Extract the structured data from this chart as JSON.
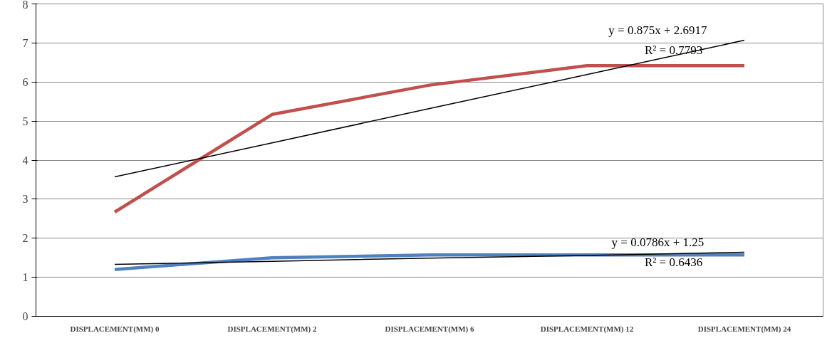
{
  "chart_data": {
    "type": "line",
    "categories": [
      "DISPLACEMENT(MM) 0",
      "DISPLACEMENT(MM) 2",
      "DISPLACEMENT(MM) 6",
      "DISPLACEMENT(MM) 12",
      "DISPLACEMENT(MM) 24"
    ],
    "series": [
      {
        "color": "#c0504d",
        "values": [
          2.67,
          5.17,
          5.92,
          6.42,
          6.42
        ]
      },
      {
        "color": "#4f81bd",
        "values": [
          1.2,
          1.5,
          1.57,
          1.57,
          1.57
        ]
      },
      {
        "color": "#000000",
        "values": [
          3.57,
          4.44,
          5.32,
          6.19,
          7.07
        ]
      },
      {
        "color": "#000000",
        "values": [
          1.33,
          1.41,
          1.49,
          1.56,
          1.64
        ]
      }
    ],
    "ylim": [
      0,
      8
    ],
    "yticks": [
      0,
      1,
      2,
      3,
      4,
      5,
      6,
      7,
      8
    ],
    "grid": "y",
    "marker": "none",
    "line_style": "solid",
    "annotations": [
      "y = 0.875x + 2.6917",
      "R² = 0.7793",
      "y = 0.0786x + 1.25",
      "R² = 0.6436"
    ]
  }
}
